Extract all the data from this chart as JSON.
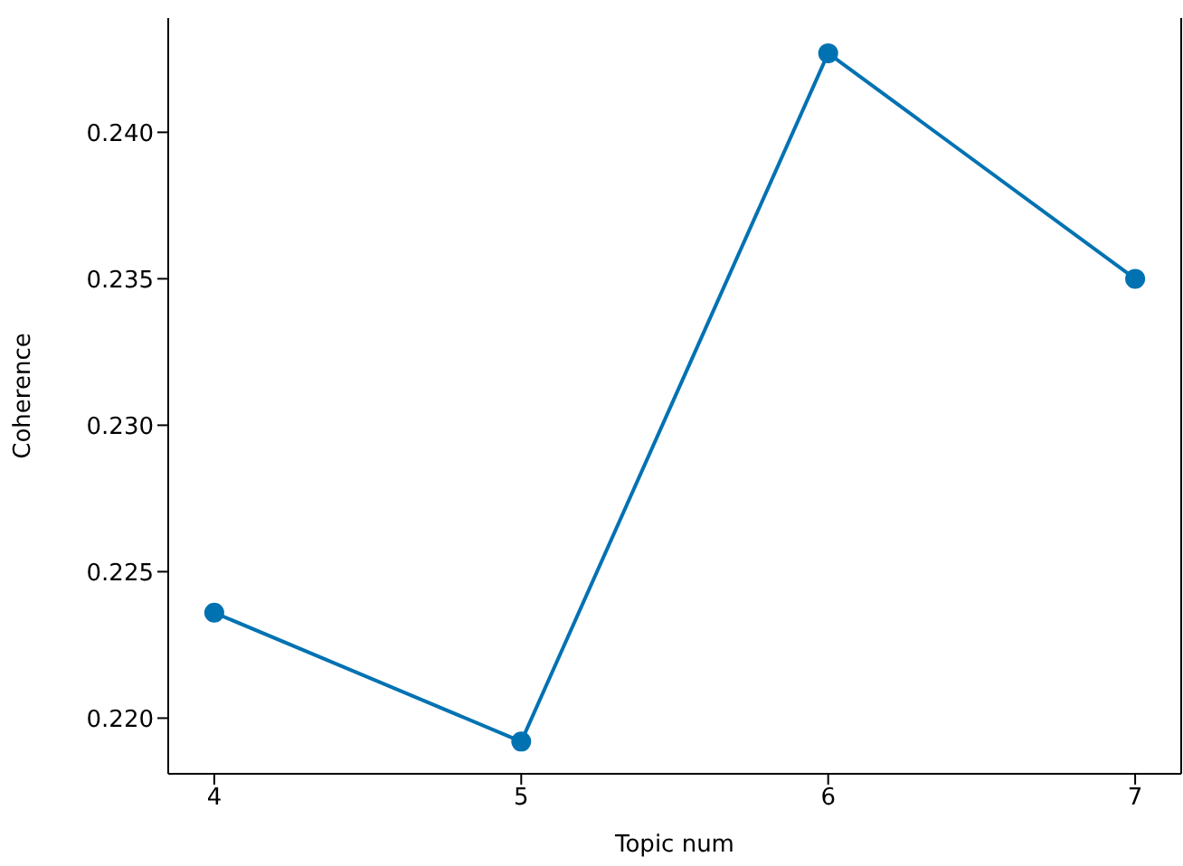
{
  "chart_data": {
    "type": "line",
    "xlabel": "Topic num",
    "ylabel": "Coherence",
    "x": [
      4,
      5,
      6,
      7
    ],
    "series": [
      {
        "color": "#0072b2",
        "values": [
          0.2236,
          0.2192,
          0.2427,
          0.235
        ]
      }
    ],
    "xlim": [
      3.85,
      7.15
    ],
    "xticks": [
      4,
      5,
      6,
      7
    ],
    "ylim": [
      0.2181,
      0.2439
    ],
    "yticks": [
      {
        "value": 0.22,
        "label": "0.220"
      },
      0.225,
      {
        "value": 0.23,
        "label": "0.230"
      },
      0.235,
      {
        "value": 0.24,
        "label": "0.240"
      }
    ],
    "marker": "circle",
    "grid": false,
    "legend": false
  }
}
